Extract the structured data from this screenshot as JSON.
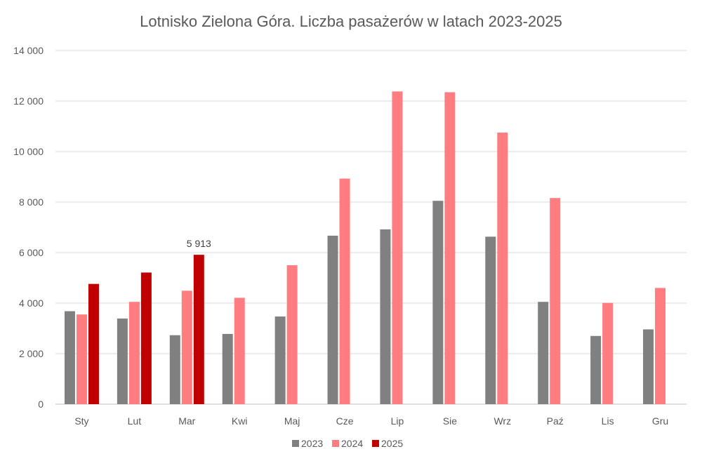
{
  "chart_data": {
    "type": "bar",
    "title": "Lotnisko Zielona Góra. Liczba pasażerów w latach 2023-2025",
    "xlabel": "",
    "ylabel": "",
    "ylim": [
      0,
      14000
    ],
    "yticks": [
      0,
      2000,
      4000,
      6000,
      8000,
      10000,
      12000,
      14000
    ],
    "ytick_labels": [
      "0",
      "2 000",
      "4 000",
      "6 000",
      "8 000",
      "10 000",
      "12 000",
      "14 000"
    ],
    "grid": true,
    "legend_position": "bottom",
    "categories": [
      "Sty",
      "Lut",
      "Mar",
      "Kwi",
      "Maj",
      "Cze",
      "Lip",
      "Sie",
      "Wrz",
      "Paź",
      "Lis",
      "Gru"
    ],
    "series": [
      {
        "name": "2023",
        "color": "#808080",
        "values": [
          3680,
          3390,
          2730,
          2780,
          3470,
          6670,
          6920,
          8050,
          6630,
          4050,
          2700,
          2960
        ]
      },
      {
        "name": "2024",
        "color": "#FF7C80",
        "values": [
          3550,
          4050,
          4490,
          4210,
          5500,
          8930,
          12380,
          12350,
          10750,
          8160,
          4010,
          4600
        ]
      },
      {
        "name": "2025",
        "color": "#C00000",
        "values": [
          4760,
          5210,
          5913,
          null,
          null,
          null,
          null,
          null,
          null,
          null,
          null,
          null
        ]
      }
    ],
    "annotations": [
      {
        "series": "2025",
        "category": "Mar",
        "text": "5 913"
      }
    ]
  }
}
